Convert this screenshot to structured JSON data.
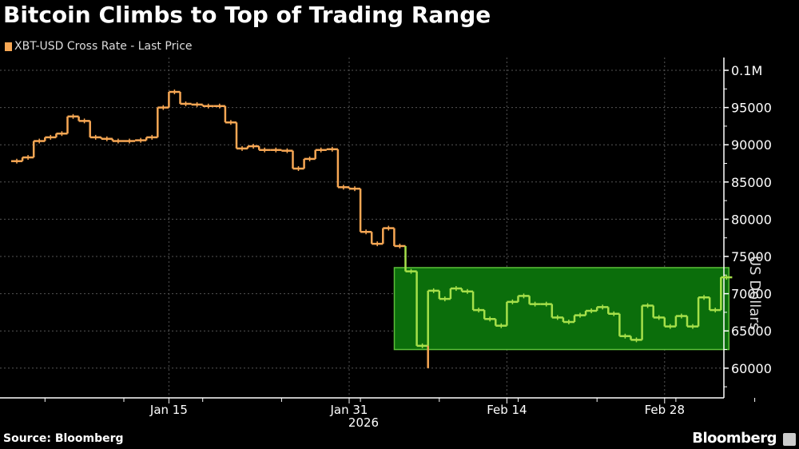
{
  "title": "Bitcoin Climbs to Top of Trading Range",
  "legend": {
    "label": "XBT-USD Cross Rate - Last Price",
    "color": "#f7a754"
  },
  "source": "Source: Bloomberg",
  "brand": "Bloomberg",
  "chart_data": {
    "type": "line",
    "title": "Bitcoin Climbs to Top of Trading Range",
    "xlabel": "2026",
    "ylabel": "US Dollars",
    "ylim": [
      56000,
      100000
    ],
    "yticks": [
      "0.1M",
      "95000",
      "90000",
      "85000",
      "80000",
      "75000",
      "70000",
      "65000",
      "60000"
    ],
    "xticks": [
      "Jan 15",
      "Jan 31",
      "Feb 14",
      "Feb 28"
    ],
    "grid": true,
    "legend_position": "top-left",
    "highlight_range": {
      "y_low": 62500,
      "y_high": 73500,
      "x_start": "Feb 5",
      "x_end": "Mar 5",
      "color": "#0b6e0b"
    },
    "series": [
      {
        "name": "XBT-USD Cross Rate - Last Price",
        "x": [
          "Jan 1",
          "Jan 2",
          "Jan 3",
          "Jan 4",
          "Jan 5",
          "Jan 6",
          "Jan 7",
          "Jan 8",
          "Jan 9",
          "Jan 10",
          "Jan 11",
          "Jan 12",
          "Jan 13",
          "Jan 14",
          "Jan 15",
          "Jan 16",
          "Jan 17",
          "Jan 18",
          "Jan 19",
          "Jan 20",
          "Jan 21",
          "Jan 22",
          "Jan 23",
          "Jan 24",
          "Jan 25",
          "Jan 26",
          "Jan 27",
          "Jan 28",
          "Jan 29",
          "Jan 30",
          "Jan 31",
          "Feb 1",
          "Feb 2",
          "Feb 3",
          "Feb 4",
          "Feb 5",
          "Feb 6",
          "Feb 7",
          "Feb 8",
          "Feb 9",
          "Feb 10",
          "Feb 11",
          "Feb 12",
          "Feb 13",
          "Feb 14",
          "Feb 15",
          "Feb 16",
          "Feb 17",
          "Feb 18",
          "Feb 19",
          "Feb 20",
          "Feb 21",
          "Feb 22",
          "Feb 23",
          "Feb 24",
          "Feb 25",
          "Feb 26",
          "Feb 27",
          "Feb 28",
          "Mar 1",
          "Mar 2",
          "Mar 3",
          "Mar 4",
          "Mar 5"
        ],
        "values": [
          87800,
          88300,
          90500,
          91000,
          91500,
          93800,
          93200,
          91000,
          90800,
          90500,
          90500,
          90600,
          91000,
          95000,
          97100,
          95500,
          95400,
          95200,
          95200,
          93000,
          89500,
          89800,
          89300,
          89300,
          89200,
          86800,
          88100,
          89300,
          89400,
          84300,
          84100,
          78300,
          76700,
          78800,
          76400,
          73000,
          63000,
          70400,
          69300,
          70700,
          70300,
          67800,
          66600,
          65700,
          68900,
          69700,
          68600,
          68600,
          66800,
          66200,
          67100,
          67700,
          68200,
          67300,
          64300,
          63800,
          68400,
          66800,
          65600,
          67000,
          65600,
          69500,
          67800,
          72200
        ]
      }
    ]
  }
}
